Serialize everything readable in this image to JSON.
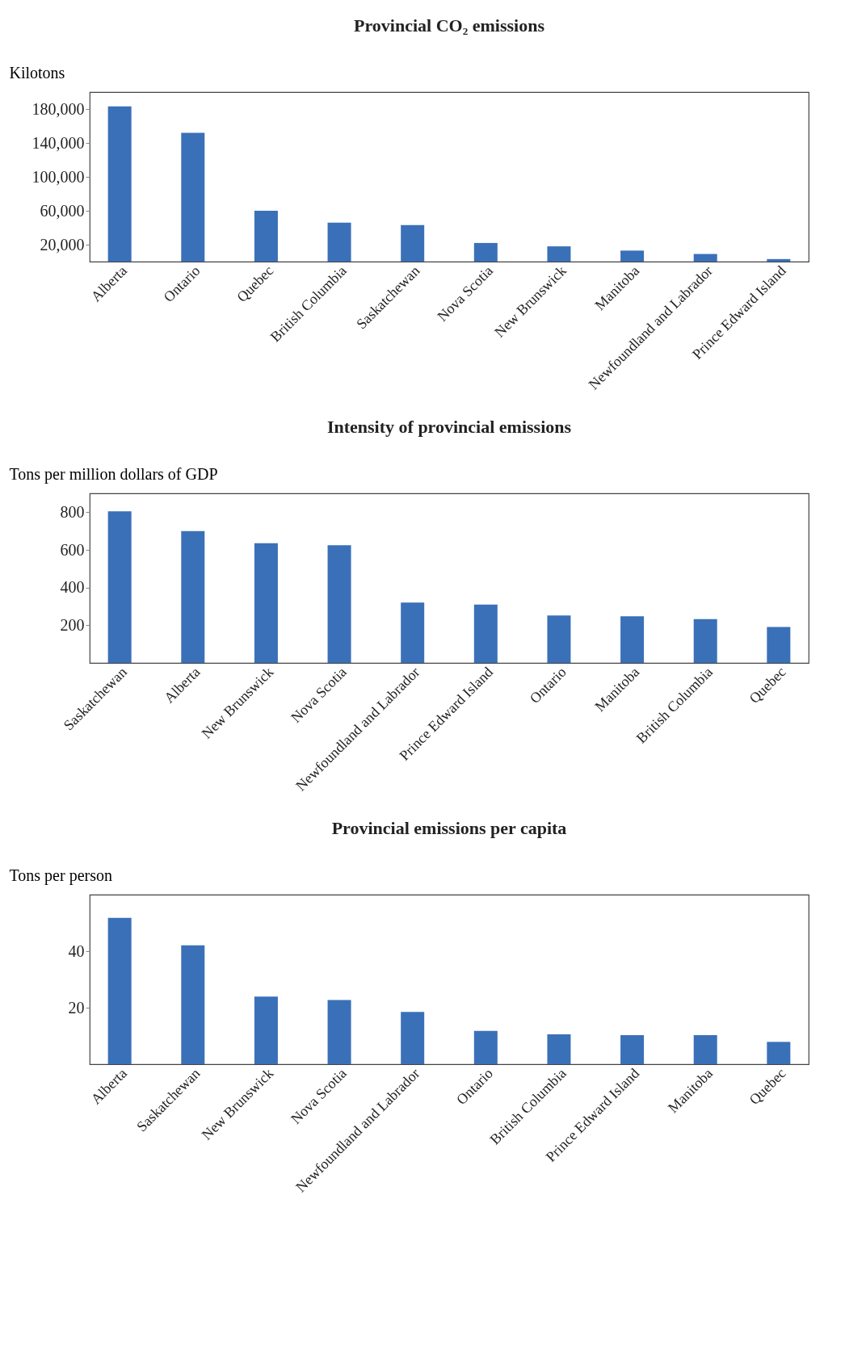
{
  "chart_data": [
    {
      "type": "bar",
      "title": "Provincial CO₂ emissions",
      "ylabel": "Kilotons",
      "categories": [
        "Alberta",
        "Ontario",
        "Quebec",
        "British Columbia",
        "Saskatchewan",
        "Nova Scotia",
        "New Brunswick",
        "Manitoba",
        "Newfoundland and Labrador",
        "Prince Edward Island"
      ],
      "values": [
        183000,
        152000,
        60000,
        46000,
        43000,
        22000,
        18000,
        13000,
        9000,
        3000
      ],
      "color": "#3a70b8",
      "ylim": [
        0,
        200000
      ],
      "yticks": [
        {
          "value": 20000,
          "label": "20,000"
        },
        {
          "value": 60000,
          "label": "60,000"
        },
        {
          "value": 100000,
          "label": "100,000"
        },
        {
          "value": 140000,
          "label": "140,000"
        },
        {
          "value": 180000,
          "label": "180,000"
        }
      ],
      "grid": false
    },
    {
      "type": "bar",
      "title": "Intensity of provincial emissions",
      "ylabel": "Tons per million dollars of GDP",
      "categories": [
        "Saskatchewan",
        "Alberta",
        "New Brunswick",
        "Nova Scotia",
        "Newfoundland and Labrador",
        "Prince Edward Island",
        "Ontario",
        "Manitoba",
        "British Columbia",
        "Quebec"
      ],
      "values": [
        805,
        700,
        635,
        625,
        320,
        310,
        252,
        247,
        232,
        191
      ],
      "color": "#3a70b8",
      "ylim": [
        0,
        900
      ],
      "yticks": [
        200,
        400,
        600,
        800
      ],
      "grid": false
    },
    {
      "type": "bar",
      "title": "Provincial emissions per capita",
      "ylabel": "Tons per person",
      "categories": [
        "Alberta",
        "Saskatchewan",
        "New Brunswick",
        "Nova Scotia",
        "Newfoundland and Labrador",
        "Ontario",
        "British Columbia",
        "Prince Edward Island",
        "Manitoba",
        "Quebec"
      ],
      "values": [
        51.8,
        42.1,
        23.9,
        22.7,
        18.5,
        11.8,
        10.6,
        10.3,
        10.3,
        7.9
      ],
      "color": "#3a70b8",
      "ylim": [
        0,
        60
      ],
      "yticks": [
        20,
        40
      ],
      "grid": false
    }
  ]
}
